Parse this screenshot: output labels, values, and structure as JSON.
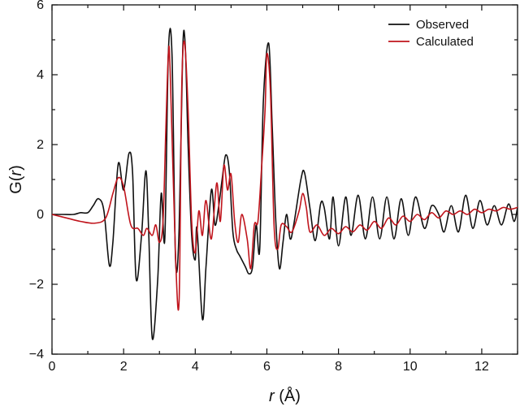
{
  "chart_data": {
    "type": "line",
    "xlabel": "r (Å)",
    "ylabel": "G(r)",
    "xlabel_parts": {
      "var": "r",
      "unit": " (Å)"
    },
    "ylabel_parts": {
      "prefix": "G(",
      "var": "r",
      "suffix": ")"
    },
    "xlim": [
      0,
      13
    ],
    "ylim": [
      -4,
      6
    ],
    "xticks": [
      0,
      2,
      4,
      6,
      8,
      10,
      12
    ],
    "xtick_labels": [
      "0",
      "2",
      "4",
      "6",
      "8",
      "10",
      "12"
    ],
    "yticks": [
      -4,
      -2,
      0,
      2,
      4,
      6
    ],
    "ytick_labels": [
      "−4",
      "−2",
      "0",
      "2",
      "4",
      "6"
    ],
    "grid": false,
    "legend_position": "top-right",
    "series": [
      {
        "name": "Observed",
        "color": "#111111",
        "points": [
          [
            0.0,
            0.0
          ],
          [
            0.3,
            0.0
          ],
          [
            0.6,
            0.0
          ],
          [
            0.8,
            0.05
          ],
          [
            1.0,
            0.05
          ],
          [
            1.15,
            0.25
          ],
          [
            1.3,
            0.45
          ],
          [
            1.45,
            0.1
          ],
          [
            1.6,
            -1.45
          ],
          [
            1.7,
            -0.8
          ],
          [
            1.85,
            1.45
          ],
          [
            2.0,
            0.7
          ],
          [
            2.15,
            1.75
          ],
          [
            2.25,
            1.2
          ],
          [
            2.35,
            -1.85
          ],
          [
            2.5,
            -0.6
          ],
          [
            2.62,
            1.25
          ],
          [
            2.7,
            -0.5
          ],
          [
            2.8,
            -3.55
          ],
          [
            2.95,
            -1.9
          ],
          [
            3.05,
            0.6
          ],
          [
            3.15,
            -0.7
          ],
          [
            3.25,
            4.65
          ],
          [
            3.35,
            4.6
          ],
          [
            3.45,
            -1.3
          ],
          [
            3.55,
            -0.4
          ],
          [
            3.65,
            4.7
          ],
          [
            3.72,
            4.85
          ],
          [
            3.8,
            2.0
          ],
          [
            3.9,
            -0.6
          ],
          [
            4.0,
            -1.3
          ],
          [
            4.05,
            -0.4
          ],
          [
            4.2,
            -3.0
          ],
          [
            4.3,
            -1.5
          ],
          [
            4.45,
            0.7
          ],
          [
            4.55,
            -0.3
          ],
          [
            4.65,
            0.2
          ],
          [
            4.75,
            1.0
          ],
          [
            4.85,
            1.7
          ],
          [
            4.95,
            1.25
          ],
          [
            5.05,
            -0.5
          ],
          [
            5.15,
            -1.0
          ],
          [
            5.25,
            -1.2
          ],
          [
            5.4,
            -1.5
          ],
          [
            5.5,
            -1.7
          ],
          [
            5.6,
            -1.5
          ],
          [
            5.7,
            -0.3
          ],
          [
            5.8,
            -1.0
          ],
          [
            5.9,
            3.2
          ],
          [
            6.05,
            4.9
          ],
          [
            6.15,
            2.5
          ],
          [
            6.25,
            -0.2
          ],
          [
            6.35,
            -1.55
          ],
          [
            6.45,
            -0.8
          ],
          [
            6.55,
            0.0
          ],
          [
            6.65,
            -0.7
          ],
          [
            6.75,
            -0.3
          ],
          [
            6.95,
            1.0
          ],
          [
            7.05,
            1.2
          ],
          [
            7.2,
            0.2
          ],
          [
            7.35,
            -0.75
          ],
          [
            7.5,
            0.3
          ],
          [
            7.6,
            0.2
          ],
          [
            7.75,
            -0.7
          ],
          [
            7.85,
            0.5
          ],
          [
            8.0,
            -0.9
          ],
          [
            8.2,
            0.5
          ],
          [
            8.35,
            -0.6
          ],
          [
            8.55,
            0.55
          ],
          [
            8.75,
            -0.7
          ],
          [
            8.95,
            0.5
          ],
          [
            9.15,
            -0.7
          ],
          [
            9.35,
            0.5
          ],
          [
            9.55,
            -0.7
          ],
          [
            9.75,
            0.45
          ],
          [
            9.95,
            -0.6
          ],
          [
            10.15,
            0.5
          ],
          [
            10.4,
            -0.4
          ],
          [
            10.6,
            0.25
          ],
          [
            10.8,
            0.0
          ],
          [
            10.95,
            -0.5
          ],
          [
            11.15,
            0.25
          ],
          [
            11.35,
            -0.5
          ],
          [
            11.55,
            0.55
          ],
          [
            11.75,
            -0.4
          ],
          [
            11.95,
            0.4
          ],
          [
            12.15,
            -0.3
          ],
          [
            12.35,
            0.25
          ],
          [
            12.55,
            -0.3
          ],
          [
            12.75,
            0.3
          ],
          [
            12.9,
            -0.2
          ],
          [
            13.0,
            0.2
          ]
        ]
      },
      {
        "name": "Calculated",
        "color": "#c0141c",
        "points": [
          [
            0.0,
            0.0
          ],
          [
            0.4,
            -0.1
          ],
          [
            0.8,
            -0.2
          ],
          [
            1.2,
            -0.25
          ],
          [
            1.5,
            -0.1
          ],
          [
            1.7,
            0.6
          ],
          [
            1.85,
            1.05
          ],
          [
            2.0,
            0.8
          ],
          [
            2.2,
            -0.3
          ],
          [
            2.4,
            -0.4
          ],
          [
            2.55,
            -0.6
          ],
          [
            2.65,
            -0.4
          ],
          [
            2.8,
            -0.6
          ],
          [
            2.9,
            -0.3
          ],
          [
            3.0,
            -0.8
          ],
          [
            3.1,
            -0.2
          ],
          [
            3.18,
            2.5
          ],
          [
            3.25,
            4.6
          ],
          [
            3.3,
            4.1
          ],
          [
            3.45,
            -1.2
          ],
          [
            3.55,
            -2.45
          ],
          [
            3.62,
            3.5
          ],
          [
            3.7,
            4.95
          ],
          [
            3.8,
            3.0
          ],
          [
            3.9,
            -0.2
          ],
          [
            4.0,
            -1.1
          ],
          [
            4.1,
            0.1
          ],
          [
            4.2,
            -0.6
          ],
          [
            4.3,
            0.4
          ],
          [
            4.45,
            -0.7
          ],
          [
            4.6,
            0.9
          ],
          [
            4.7,
            -0.2
          ],
          [
            4.8,
            1.4
          ],
          [
            4.9,
            0.7
          ],
          [
            5.0,
            1.15
          ],
          [
            5.1,
            -0.2
          ],
          [
            5.2,
            -0.8
          ],
          [
            5.3,
            0.0
          ],
          [
            5.45,
            -0.7
          ],
          [
            5.55,
            -1.55
          ],
          [
            5.65,
            -0.3
          ],
          [
            5.75,
            -0.2
          ],
          [
            5.85,
            1.3
          ],
          [
            5.95,
            3.0
          ],
          [
            6.0,
            4.6
          ],
          [
            6.1,
            3.5
          ],
          [
            6.2,
            -0.3
          ],
          [
            6.3,
            -1.0
          ],
          [
            6.4,
            -0.3
          ],
          [
            6.55,
            -0.35
          ],
          [
            6.7,
            -0.5
          ],
          [
            6.9,
            0.1
          ],
          [
            7.0,
            0.6
          ],
          [
            7.1,
            0.2
          ],
          [
            7.2,
            -0.5
          ],
          [
            7.4,
            -0.3
          ],
          [
            7.6,
            -0.6
          ],
          [
            7.8,
            -0.4
          ],
          [
            8.0,
            -0.55
          ],
          [
            8.2,
            -0.35
          ],
          [
            8.4,
            -0.5
          ],
          [
            8.6,
            -0.3
          ],
          [
            8.8,
            -0.45
          ],
          [
            9.0,
            -0.2
          ],
          [
            9.2,
            -0.4
          ],
          [
            9.4,
            -0.1
          ],
          [
            9.6,
            -0.3
          ],
          [
            9.8,
            -0.05
          ],
          [
            10.0,
            -0.2
          ],
          [
            10.2,
            0.0
          ],
          [
            10.4,
            -0.15
          ],
          [
            10.6,
            0.05
          ],
          [
            10.8,
            -0.1
          ],
          [
            11.0,
            0.1
          ],
          [
            11.2,
            0.0
          ],
          [
            11.4,
            0.1
          ],
          [
            11.6,
            0.0
          ],
          [
            11.8,
            0.15
          ],
          [
            12.0,
            0.05
          ],
          [
            12.2,
            0.15
          ],
          [
            12.4,
            0.1
          ],
          [
            12.6,
            0.2
          ],
          [
            12.8,
            0.15
          ],
          [
            13.0,
            0.2
          ]
        ]
      }
    ]
  }
}
